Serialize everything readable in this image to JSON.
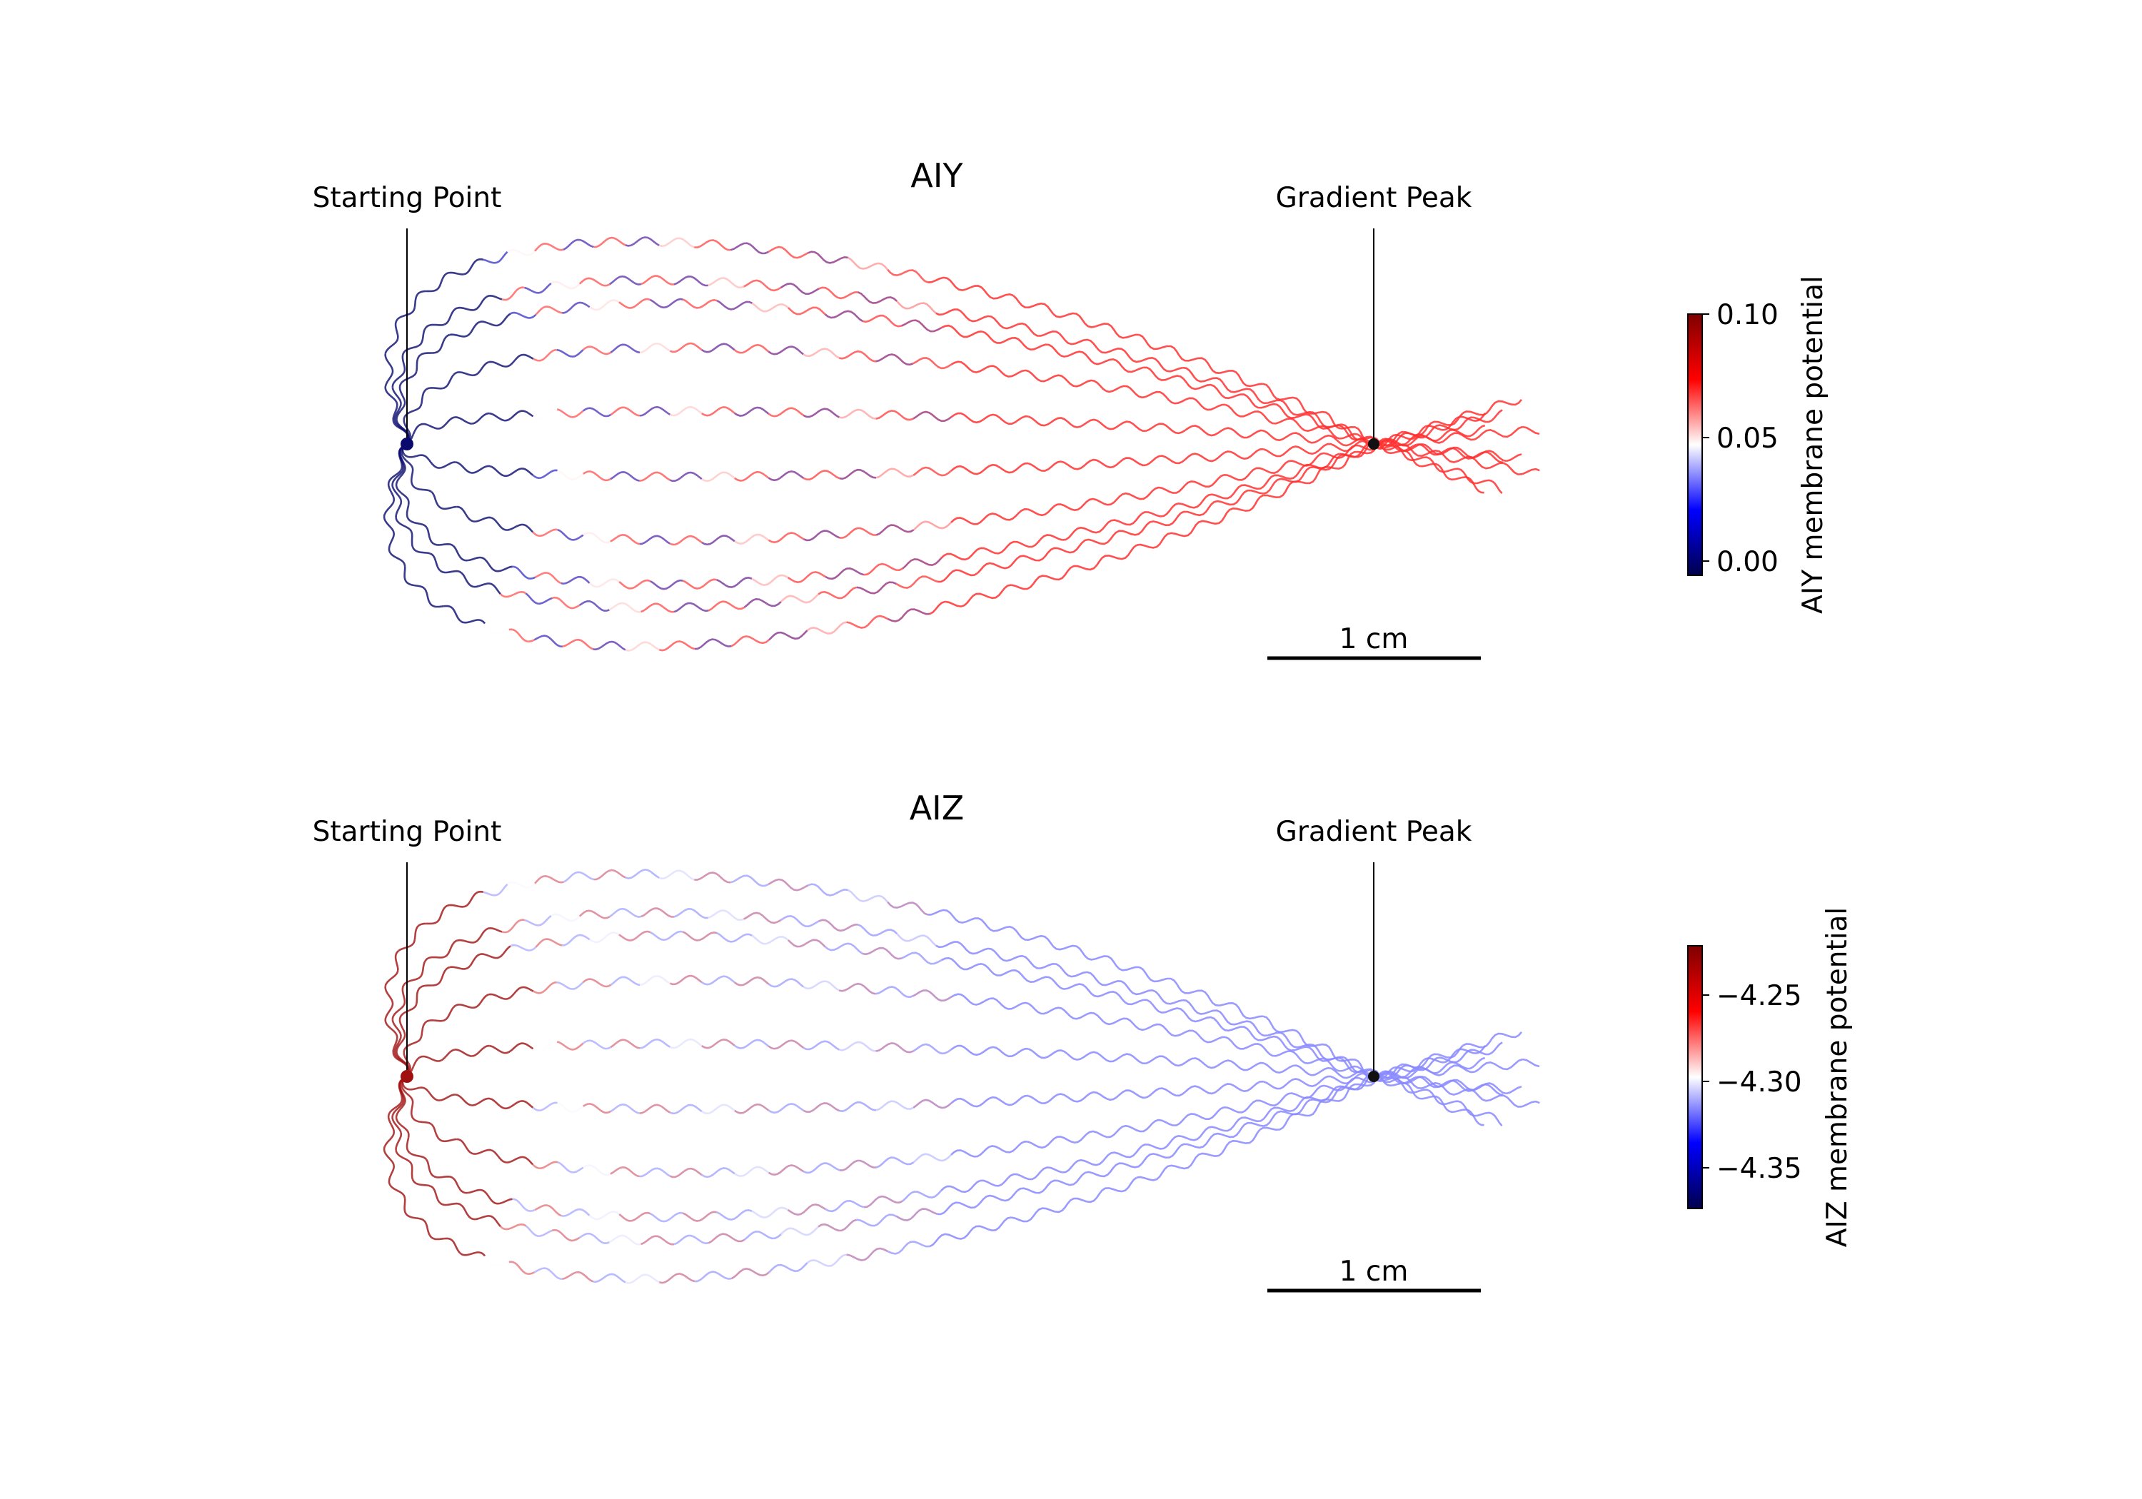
{
  "chart_data": [
    {
      "type": "line",
      "title": "AIY",
      "annotations": [
        "Starting Point",
        "Gradient Peak"
      ],
      "scalebar_label": "1 cm",
      "colorbar": {
        "label": "AIY membrane potential",
        "range": [
          -0.01,
          0.1
        ],
        "ticks": [
          0.0,
          0.05,
          0.1
        ],
        "tick_labels": [
          "0.00",
          "0.05",
          "0.10"
        ],
        "colormap": "seismic"
      },
      "start_point_cm": [
        0,
        0
      ],
      "gradient_peak_cm": [
        4.55,
        0
      ],
      "trajectory_count": 10,
      "trajectories_peak_y_cm": [
        1.05,
        0.85,
        0.73,
        0.5,
        0.17,
        -0.17,
        -0.5,
        -0.73,
        -0.85,
        -1.05
      ],
      "grid": false,
      "axes_visible": false
    },
    {
      "type": "line",
      "title": "AIZ",
      "annotations": [
        "Starting Point",
        "Gradient Peak"
      ],
      "scalebar_label": "1 cm",
      "colorbar": {
        "label": "AIZ membrane potential",
        "range": [
          -4.38,
          -4.22
        ],
        "ticks": [
          -4.25,
          -4.3,
          -4.35
        ],
        "tick_labels": [
          "−4.25",
          "−4.30",
          "−4.35"
        ],
        "colormap": "seismic"
      },
      "start_point_cm": [
        0,
        0
      ],
      "gradient_peak_cm": [
        4.55,
        0
      ],
      "trajectory_count": 10,
      "trajectories_peak_y_cm": [
        1.05,
        0.85,
        0.73,
        0.5,
        0.17,
        -0.17,
        -0.5,
        -0.73,
        -0.85,
        -1.05
      ],
      "grid": false,
      "axes_visible": false
    }
  ],
  "colors": {
    "aiy_start": "#0a0a6e",
    "aiy_approach": "#ff3030",
    "aiz_start": "#a01010",
    "aiz_approach": "#8a8aff",
    "annotation_line": "#000000"
  }
}
